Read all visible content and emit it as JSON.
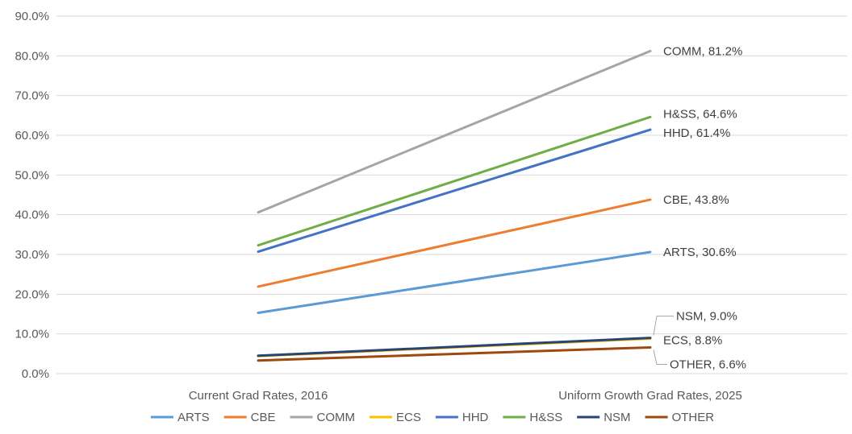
{
  "chart_data": {
    "type": "line",
    "categories": [
      "Current Grad Rates, 2016",
      "Uniform Growth Grad Rates, 2025"
    ],
    "ylim": [
      0,
      90
    ],
    "yticks": [
      0,
      10,
      20,
      30,
      40,
      50,
      60,
      70,
      80,
      90
    ],
    "ytick_labels": [
      "0.0%",
      "10.0%",
      "20.0%",
      "30.0%",
      "40.0%",
      "50.0%",
      "60.0%",
      "70.0%",
      "80.0%",
      "90.0%"
    ],
    "grid": true,
    "legend_position": "bottom",
    "series": [
      {
        "name": "ARTS",
        "color": "#5B9BD5",
        "values": [
          15.3,
          30.6
        ],
        "end_label": "ARTS, 30.6%"
      },
      {
        "name": "CBE",
        "color": "#ED7D31",
        "values": [
          21.9,
          43.8
        ],
        "end_label": "CBE, 43.8%"
      },
      {
        "name": "COMM",
        "color": "#A5A5A5",
        "values": [
          40.6,
          81.2
        ],
        "end_label": "COMM, 81.2%"
      },
      {
        "name": "ECS",
        "color": "#FFC000",
        "values": [
          4.4,
          8.8
        ],
        "end_label": "ECS, 8.8%"
      },
      {
        "name": "HHD",
        "color": "#4472C4",
        "values": [
          30.7,
          61.4
        ],
        "end_label": "HHD, 61.4%"
      },
      {
        "name": "H&SS",
        "color": "#70AD47",
        "values": [
          32.3,
          64.6
        ],
        "end_label": "H&SS, 64.6%"
      },
      {
        "name": "NSM",
        "color": "#264478",
        "values": [
          4.5,
          9.0
        ],
        "end_label": "NSM, 9.0%"
      },
      {
        "name": "OTHER",
        "color": "#9E480E",
        "values": [
          3.3,
          6.6
        ],
        "end_label": "OTHER, 6.6%"
      }
    ]
  }
}
